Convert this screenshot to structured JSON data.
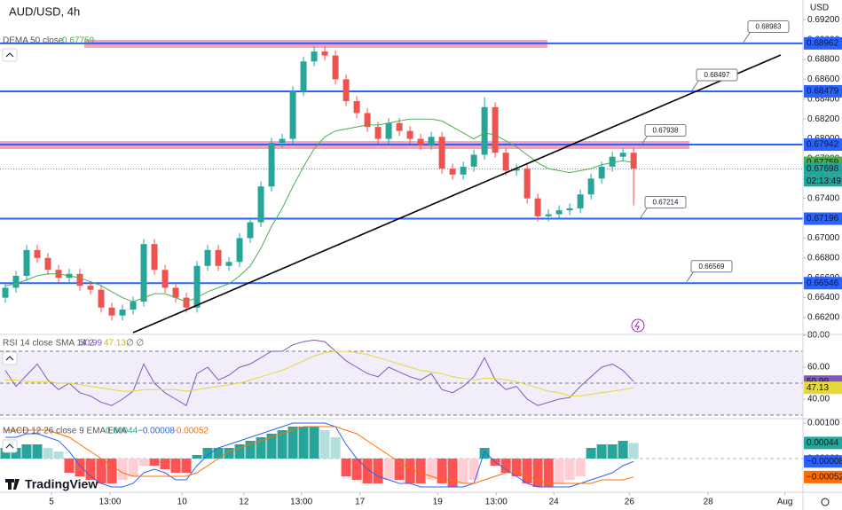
{
  "header": {
    "currency": "USD",
    "brand": "TradingView"
  },
  "chart_data": [
    {
      "type": "candlestick",
      "title": "AUD/USD, 4h",
      "open": [
        0.664,
        0.665,
        0.6662,
        0.6688,
        0.668,
        0.6668,
        0.666,
        0.6664,
        0.6652,
        0.6648,
        0.663,
        0.6622,
        0.6628,
        0.6636,
        0.6694,
        0.6668,
        0.665,
        0.664,
        0.663,
        0.6672,
        0.6688,
        0.6672,
        0.6676,
        0.67,
        0.6716,
        0.6752,
        0.6796,
        0.68,
        0.6848,
        0.6878,
        0.6888,
        0.6884,
        0.686,
        0.6838,
        0.6826,
        0.6812,
        0.68,
        0.6816,
        0.6808,
        0.68,
        0.6794,
        0.6802,
        0.677,
        0.6764,
        0.6772,
        0.6784,
        0.6832,
        0.6786,
        0.6768,
        0.677,
        0.674,
        0.6722,
        0.6724,
        0.6728,
        0.673,
        0.6744,
        0.676,
        0.6772,
        0.6782,
        0.6786
      ],
      "high": [
        0.6655,
        0.6667,
        0.6693,
        0.6693,
        0.6685,
        0.6673,
        0.6669,
        0.6669,
        0.6657,
        0.6653,
        0.6635,
        0.6633,
        0.6641,
        0.6699,
        0.6699,
        0.6673,
        0.6655,
        0.6645,
        0.6677,
        0.6693,
        0.6693,
        0.6681,
        0.6705,
        0.6721,
        0.6757,
        0.6801,
        0.6805,
        0.6853,
        0.6883,
        0.6893,
        0.6893,
        0.6889,
        0.6865,
        0.6843,
        0.6831,
        0.6817,
        0.6821,
        0.6821,
        0.6813,
        0.6805,
        0.6807,
        0.6807,
        0.6775,
        0.6777,
        0.6789,
        0.6842,
        0.6837,
        0.6791,
        0.6775,
        0.6775,
        0.6745,
        0.6729,
        0.6733,
        0.6735,
        0.6749,
        0.6765,
        0.6777,
        0.6787,
        0.6791,
        0.6791
      ],
      "low": [
        0.6635,
        0.6645,
        0.6657,
        0.6675,
        0.6663,
        0.6655,
        0.6655,
        0.6647,
        0.6643,
        0.6625,
        0.6617,
        0.6617,
        0.6623,
        0.6631,
        0.6663,
        0.6645,
        0.6635,
        0.6625,
        0.6625,
        0.6667,
        0.6667,
        0.6667,
        0.6671,
        0.6695,
        0.6711,
        0.6747,
        0.6791,
        0.6795,
        0.6843,
        0.6873,
        0.6879,
        0.6855,
        0.6833,
        0.6821,
        0.6807,
        0.6795,
        0.6795,
        0.6803,
        0.6795,
        0.6789,
        0.6789,
        0.6765,
        0.6759,
        0.6759,
        0.6767,
        0.6779,
        0.6781,
        0.6763,
        0.6763,
        0.6735,
        0.6717,
        0.6717,
        0.6719,
        0.6723,
        0.6725,
        0.6739,
        0.6755,
        0.6767,
        0.6777,
        0.6733
      ],
      "close": [
        0.665,
        0.6662,
        0.6688,
        0.668,
        0.6668,
        0.666,
        0.6664,
        0.6652,
        0.6648,
        0.663,
        0.6622,
        0.6628,
        0.6636,
        0.6694,
        0.6668,
        0.665,
        0.664,
        0.663,
        0.6672,
        0.6688,
        0.6672,
        0.6676,
        0.67,
        0.6716,
        0.6752,
        0.6796,
        0.68,
        0.6848,
        0.6878,
        0.6888,
        0.6884,
        0.686,
        0.6838,
        0.6826,
        0.6812,
        0.68,
        0.6816,
        0.6808,
        0.68,
        0.6794,
        0.6802,
        0.677,
        0.6764,
        0.6772,
        0.6784,
        0.6832,
        0.6786,
        0.6768,
        0.677,
        0.674,
        0.6722,
        0.6724,
        0.6728,
        0.673,
        0.6744,
        0.676,
        0.6772,
        0.6782,
        0.6786,
        0.677
      ],
      "up_color": "#26a69a",
      "down_color": "#ef5350",
      "series": [
        {
          "name": "DEMA 50 close",
          "color": "#4caf50",
          "last": 0.67759,
          "values": [
            0.6652,
            0.6654,
            0.6658,
            0.6662,
            0.6664,
            0.6664,
            0.6662,
            0.666,
            0.6656,
            0.6652,
            0.6646,
            0.664,
            0.6636,
            0.664,
            0.6644,
            0.6644,
            0.664,
            0.6636,
            0.664,
            0.6646,
            0.665,
            0.6654,
            0.6662,
            0.6672,
            0.669,
            0.6712,
            0.673,
            0.6752,
            0.6772,
            0.679,
            0.6802,
            0.6808,
            0.681,
            0.6812,
            0.6814,
            0.6814,
            0.6816,
            0.6818,
            0.682,
            0.682,
            0.682,
            0.6818,
            0.6812,
            0.6806,
            0.68,
            0.6806,
            0.6804,
            0.6798,
            0.6792,
            0.6784,
            0.6776,
            0.677,
            0.6768,
            0.6766,
            0.6768,
            0.677,
            0.6774,
            0.6776,
            0.6778,
            0.6776
          ]
        }
      ],
      "levels": [
        0.68962,
        0.68479,
        0.67942,
        0.67196,
        0.66546
      ],
      "level_color": "#2962ff",
      "zone_color": "rgba(233,30,99,0.42)",
      "alerts": [
        0.68983,
        0.68497,
        0.67938,
        0.67214,
        0.66569
      ],
      "price": 0.67698,
      "price_color": "#26a69a",
      "countdown": "02:13:49",
      "ylim": [
        0.66048,
        0.69399
      ],
      "yticks": [
        {
          "value": 0.692,
          "label": "0.69200"
        },
        {
          "value": 0.69,
          "label": "0.69000"
        },
        {
          "value": 0.688,
          "label": "0.68800"
        },
        {
          "value": 0.686,
          "label": "0.68600"
        },
        {
          "value": 0.684,
          "label": "0.68400"
        },
        {
          "value": 0.682,
          "label": "0.68200"
        },
        {
          "value": 0.68,
          "label": "0.68000"
        },
        {
          "value": 0.678,
          "label": "0.67800"
        },
        {
          "value": 0.676,
          "label": "0.67600"
        },
        {
          "value": 0.674,
          "label": "0.67400"
        },
        {
          "value": 0.672,
          "label": "0.67200"
        },
        {
          "value": 0.67,
          "label": "0.67000"
        },
        {
          "value": 0.668,
          "label": "0.66800"
        },
        {
          "value": 0.666,
          "label": "0.66600"
        },
        {
          "value": 0.664,
          "label": "0.66400"
        },
        {
          "value": 0.662,
          "label": "0.66200"
        }
      ],
      "xlim": [
        -0.5,
        74.9
      ],
      "xticks": [
        {
          "value": 4.33,
          "label": "5"
        },
        {
          "value": 9.83,
          "label": "13:00"
        },
        {
          "value": 16.6,
          "label": "10"
        },
        {
          "value": 22.4,
          "label": "12"
        },
        {
          "value": 27.8,
          "label": "13:00"
        },
        {
          "value": 33.3,
          "label": "17"
        },
        {
          "value": 40.6,
          "label": "19"
        },
        {
          "value": 46.1,
          "label": "13:00"
        },
        {
          "value": 51.5,
          "label": "24"
        },
        {
          "value": 58.6,
          "label": "26"
        },
        {
          "value": 66,
          "label": "28"
        },
        {
          "value": 73.2,
          "label": "Aug"
        }
      ]
    },
    {
      "type": "line",
      "title": "RSI 14 close SMA 14 2",
      "status": "∅ ∅",
      "series": [
        {
          "color": "#7e57c2",
          "values": [
            58,
            48,
            55,
            62,
            52,
            46,
            50,
            44,
            42,
            38,
            36,
            40,
            45,
            62,
            50,
            44,
            40,
            36,
            56,
            60,
            52,
            55,
            60,
            62,
            66,
            70,
            70,
            74,
            76,
            77,
            76,
            70,
            64,
            60,
            56,
            54,
            60,
            57,
            54,
            52,
            56,
            46,
            44,
            48,
            54,
            66,
            52,
            46,
            48,
            40,
            36,
            38,
            40,
            41,
            48,
            54,
            60,
            62,
            58,
            50.99
          ]
        },
        {
          "color": "#e6d83a",
          "values": [
            52,
            52,
            51,
            51,
            51,
            50,
            50,
            49,
            48,
            47,
            46,
            45,
            45,
            46,
            46,
            46,
            46,
            45,
            46,
            47,
            48,
            49,
            50,
            52,
            54,
            56,
            58,
            61,
            64,
            67,
            69,
            70,
            70,
            69,
            68,
            66,
            64,
            62,
            60,
            58,
            57,
            56,
            54,
            53,
            52,
            53,
            53,
            52,
            51,
            49,
            47,
            45,
            44,
            42,
            42,
            43,
            44,
            45,
            46,
            47.13
          ]
        }
      ],
      "bands": [
        70,
        50,
        30
      ],
      "ylim": [
        27.8,
        80
      ],
      "yticks": [
        {
          "value": 80,
          "label": "80.00"
        },
        {
          "value": 60,
          "label": "60.00"
        },
        {
          "value": 40,
          "label": "40.00"
        }
      ]
    },
    {
      "type": "macd",
      "title": "MACD 12 26 close 9 EMA EMA",
      "histogram": [
        0.0003,
        0.0003,
        0.0004,
        0.0004,
        0.0003,
        0.0002,
        -0.0004,
        -0.0005,
        -0.0006,
        -0.0007,
        -0.0007,
        -0.0006,
        -0.0005,
        -0.0002,
        -0.0002,
        -0.0003,
        -0.0004,
        -0.0004,
        0.0001,
        0.0003,
        0.0003,
        0.0003,
        0.0004,
        0.0005,
        0.0006,
        0.0007,
        0.0008,
        0.0009,
        0.0009,
        0.0009,
        0.0008,
        0.0006,
        -0.0005,
        -0.0006,
        -0.0007,
        -0.0007,
        -0.0006,
        -0.0006,
        -0.0007,
        -0.0007,
        -0.0006,
        -0.0007,
        -0.0008,
        -0.0007,
        -0.0006,
        0.0003,
        -0.0002,
        -0.0004,
        -0.0005,
        -0.0007,
        -0.0008,
        -0.0008,
        -0.0007,
        -0.0006,
        -0.0005,
        0.0003,
        0.0004,
        0.0004,
        0.0005,
        0.00044
      ],
      "series": [
        {
          "color": "#2962ff",
          "values": [
            0.0006,
            0.0006,
            0.0007,
            0.0007,
            0.0006,
            0.0005,
            0.0002,
            -0.0002,
            -0.0005,
            -0.0007,
            -0.0008,
            -0.0008,
            -0.0007,
            -0.0004,
            -0.0003,
            -0.0004,
            -0.0006,
            -0.0006,
            -0.0002,
            0.0001,
            0.0003,
            0.0004,
            0.0005,
            0.0006,
            0.0007,
            0.0008,
            0.0009,
            0.001,
            0.001,
            0.001,
            0.001,
            0.0009,
            0.0004,
            0.0,
            -0.0003,
            -0.0005,
            -0.0006,
            -0.0007,
            -0.0007,
            -0.0008,
            -0.0008,
            -0.0008,
            -0.0008,
            -0.0008,
            -0.0007,
            0.0002,
            -0.0001,
            -0.0003,
            -0.0005,
            -0.0007,
            -0.0008,
            -0.0008,
            -0.0008,
            -0.0008,
            -0.0007,
            -0.0006,
            -0.0005,
            -0.0004,
            -0.0002,
            -8e-05
          ]
        },
        {
          "color": "#ff6d00",
          "values": [
            0.0008,
            0.0008,
            0.0008,
            0.0008,
            0.0008,
            0.0007,
            0.0006,
            0.0004,
            0.0002,
            0.0,
            -0.0002,
            -0.0004,
            -0.0005,
            -0.0005,
            -0.0005,
            -0.0005,
            -0.0005,
            -0.0005,
            -0.0004,
            -0.0002,
            0.0,
            0.0002,
            0.0003,
            0.0004,
            0.0005,
            0.0006,
            0.0007,
            0.0008,
            0.0009,
            0.0009,
            0.0009,
            0.0009,
            0.0008,
            0.0007,
            0.0005,
            0.0003,
            0.0001,
            -0.0001,
            -0.0003,
            -0.0004,
            -0.0005,
            -0.0006,
            -0.0006,
            -0.0007,
            -0.0007,
            -0.0006,
            -0.0005,
            -0.0004,
            -0.0004,
            -0.0005,
            -0.0006,
            -0.0007,
            -0.0007,
            -0.0007,
            -0.0007,
            -0.0007,
            -0.0006,
            -0.0006,
            -0.0006,
            -0.00052
          ]
        }
      ],
      "legend": [
        {
          "value": 0.00044,
          "label": "0.00044",
          "color": "#26a69a"
        },
        {
          "value": -8e-05,
          "label": "−0.00008",
          "color": "#2962ff"
        },
        {
          "value": -0.00052,
          "label": "−0.00052",
          "color": "#ff6d00"
        }
      ],
      "ylim": [
        -0.00095,
        0.0011
      ],
      "yticks": [
        {
          "value": 0.001,
          "label": "0.00100"
        },
        {
          "value": 0,
          "label": "0.00000"
        }
      ]
    }
  ]
}
